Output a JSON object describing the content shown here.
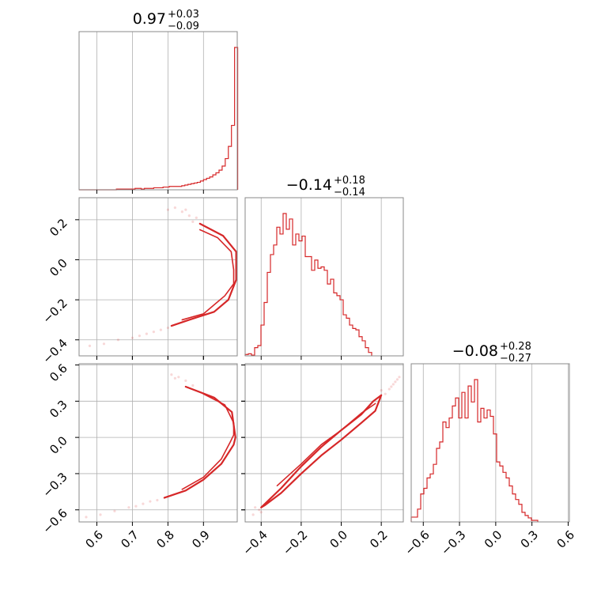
{
  "colors": {
    "series": "#d62728",
    "grid": "#b0b0b0",
    "frame": "#888888",
    "axis": "#000000"
  },
  "chart_data": {
    "type": "corner",
    "parameters": [
      {
        "title": {
          "median": "0.97",
          "plus": "+0.03",
          "minus": "−0.09"
        },
        "range": [
          0.55,
          0.995
        ],
        "ticks": [
          0.6,
          0.7,
          0.8,
          0.9
        ],
        "tick_labels": [
          "0.6",
          "0.7",
          "0.8",
          "0.9"
        ],
        "histogram": {
          "bin_edges_start": 0.55,
          "bin_width": 0.00875,
          "counts": [
            0,
            0,
            0,
            0,
            0,
            0,
            0,
            0,
            0,
            0,
            0,
            0,
            1,
            1,
            1,
            1,
            1,
            1,
            2,
            2,
            1,
            2,
            2,
            2,
            3,
            3,
            3,
            4,
            4,
            5,
            5,
            5,
            5,
            6,
            7,
            8,
            9,
            10,
            11,
            13,
            15,
            17,
            19,
            22,
            25,
            29,
            35,
            46,
            64,
            95,
            210
          ]
        }
      },
      {
        "title": {
          "median": "−0.14",
          "plus": "+0.18",
          "minus": "−0.14"
        },
        "range": [
          -0.48,
          0.31
        ],
        "ticks": [
          -0.4,
          -0.2,
          0.0,
          0.2
        ],
        "tick_labels": [
          "−0.4",
          "−0.2",
          "0.0",
          "0.2"
        ],
        "histogram": {
          "bin_edges_start": -0.48,
          "bin_width": 0.0158,
          "counts": [
            2,
            3,
            1,
            12,
            15,
            45,
            78,
            122,
            148,
            162,
            188,
            178,
            208,
            185,
            200,
            162,
            178,
            168,
            175,
            145,
            145,
            125,
            140,
            128,
            130,
            125,
            105,
            112,
            92,
            88,
            82,
            60,
            55,
            45,
            40,
            38,
            28,
            22,
            12,
            5
          ]
        }
      },
      {
        "title": {
          "median": "−0.08",
          "plus": "+0.28",
          "minus": "−0.27"
        },
        "range": [
          -0.7,
          0.61
        ],
        "ticks": [
          -0.6,
          -0.3,
          0.0,
          0.3,
          0.6
        ],
        "tick_labels": [
          "−0.6",
          "−0.3",
          "0.0",
          "0.3",
          "0.6"
        ],
        "histogram": {
          "bin_edges_start": -0.7,
          "bin_width": 0.0262,
          "counts": [
            6,
            6,
            16,
            35,
            42,
            55,
            60,
            72,
            92,
            100,
            125,
            118,
            130,
            145,
            155,
            130,
            162,
            130,
            170,
            150,
            178,
            125,
            142,
            130,
            140,
            132,
            110,
            75,
            70,
            62,
            55,
            45,
            35,
            28,
            22,
            12,
            8,
            5,
            2,
            2
          ]
        }
      }
    ],
    "pair_curves": [
      {
        "x_param": 0,
        "y_param": 1,
        "outer": [
          [
            0.89,
            0.18
          ],
          [
            0.955,
            0.12
          ],
          [
            0.992,
            0.04
          ],
          [
            0.992,
            -0.1
          ],
          [
            0.97,
            -0.2
          ],
          [
            0.93,
            -0.26
          ],
          [
            0.86,
            -0.3
          ],
          [
            0.81,
            -0.33
          ]
        ],
        "inner": [
          [
            0.89,
            0.15
          ],
          [
            0.94,
            0.11
          ],
          [
            0.978,
            0.04
          ],
          [
            0.985,
            -0.05
          ],
          [
            0.985,
            -0.12
          ],
          [
            0.96,
            -0.18
          ],
          [
            0.9,
            -0.27
          ],
          [
            0.84,
            -0.3
          ]
        ],
        "scatter": [
          [
            0.8,
            0.25
          ],
          [
            0.82,
            0.26
          ],
          [
            0.84,
            0.24
          ],
          [
            0.85,
            0.25
          ],
          [
            0.86,
            0.22
          ],
          [
            0.88,
            0.21
          ],
          [
            0.87,
            0.19
          ],
          [
            0.78,
            -0.35
          ],
          [
            0.74,
            -0.37
          ],
          [
            0.7,
            -0.39
          ],
          [
            0.66,
            -0.4
          ],
          [
            0.62,
            -0.42
          ],
          [
            0.58,
            -0.43
          ],
          [
            0.76,
            -0.36
          ],
          [
            0.72,
            -0.38
          ],
          [
            0.8,
            -0.34
          ]
        ]
      },
      {
        "x_param": 0,
        "y_param": 2,
        "outer": [
          [
            0.85,
            0.42
          ],
          [
            0.93,
            0.33
          ],
          [
            0.98,
            0.21
          ],
          [
            0.99,
            0.0
          ],
          [
            0.985,
            -0.06
          ],
          [
            0.95,
            -0.22
          ],
          [
            0.9,
            -0.35
          ],
          [
            0.85,
            -0.44
          ],
          [
            0.79,
            -0.5
          ]
        ],
        "inner": [
          [
            0.9,
            0.36
          ],
          [
            0.96,
            0.27
          ],
          [
            0.985,
            0.12
          ],
          [
            0.985,
            0.02
          ],
          [
            0.975,
            -0.04
          ],
          [
            0.95,
            -0.18
          ],
          [
            0.9,
            -0.33
          ],
          [
            0.84,
            -0.43
          ]
        ],
        "scatter": [
          [
            0.81,
            0.52
          ],
          [
            0.83,
            0.5
          ],
          [
            0.85,
            0.47
          ],
          [
            0.87,
            0.43
          ],
          [
            0.82,
            0.49
          ],
          [
            0.77,
            -0.52
          ],
          [
            0.73,
            -0.55
          ],
          [
            0.69,
            -0.58
          ],
          [
            0.65,
            -0.61
          ],
          [
            0.61,
            -0.64
          ],
          [
            0.57,
            -0.66
          ],
          [
            0.75,
            -0.53
          ],
          [
            0.71,
            -0.57
          ]
        ]
      },
      {
        "x_param": 1,
        "y_param": 2,
        "outer": [
          [
            -0.4,
            -0.58
          ],
          [
            -0.3,
            -0.42
          ],
          [
            -0.2,
            -0.24
          ],
          [
            -0.1,
            -0.08
          ],
          [
            0.0,
            0.06
          ],
          [
            0.1,
            0.19
          ],
          [
            0.16,
            0.3
          ],
          [
            0.2,
            0.35
          ],
          [
            0.17,
            0.22
          ],
          [
            0.1,
            0.12
          ],
          [
            0.0,
            -0.02
          ],
          [
            -0.1,
            -0.15
          ],
          [
            -0.2,
            -0.3
          ],
          [
            -0.3,
            -0.46
          ],
          [
            -0.38,
            -0.56
          ],
          [
            -0.4,
            -0.58
          ]
        ],
        "inner": [
          [
            -0.32,
            -0.4
          ],
          [
            -0.2,
            -0.22
          ],
          [
            -0.1,
            -0.06
          ],
          [
            0.0,
            0.06
          ],
          [
            0.1,
            0.2
          ],
          [
            0.17,
            0.28
          ]
        ],
        "scatter": [
          [
            0.22,
            0.36
          ],
          [
            0.25,
            0.42
          ],
          [
            0.27,
            0.46
          ],
          [
            0.29,
            0.5
          ],
          [
            0.24,
            0.4
          ],
          [
            0.28,
            0.48
          ],
          [
            -0.41,
            -0.6
          ],
          [
            -0.44,
            -0.64
          ],
          [
            -0.4,
            -0.62
          ],
          [
            -0.43,
            -0.58
          ],
          [
            0.2,
            0.39
          ],
          [
            0.26,
            0.44
          ]
        ]
      }
    ]
  }
}
